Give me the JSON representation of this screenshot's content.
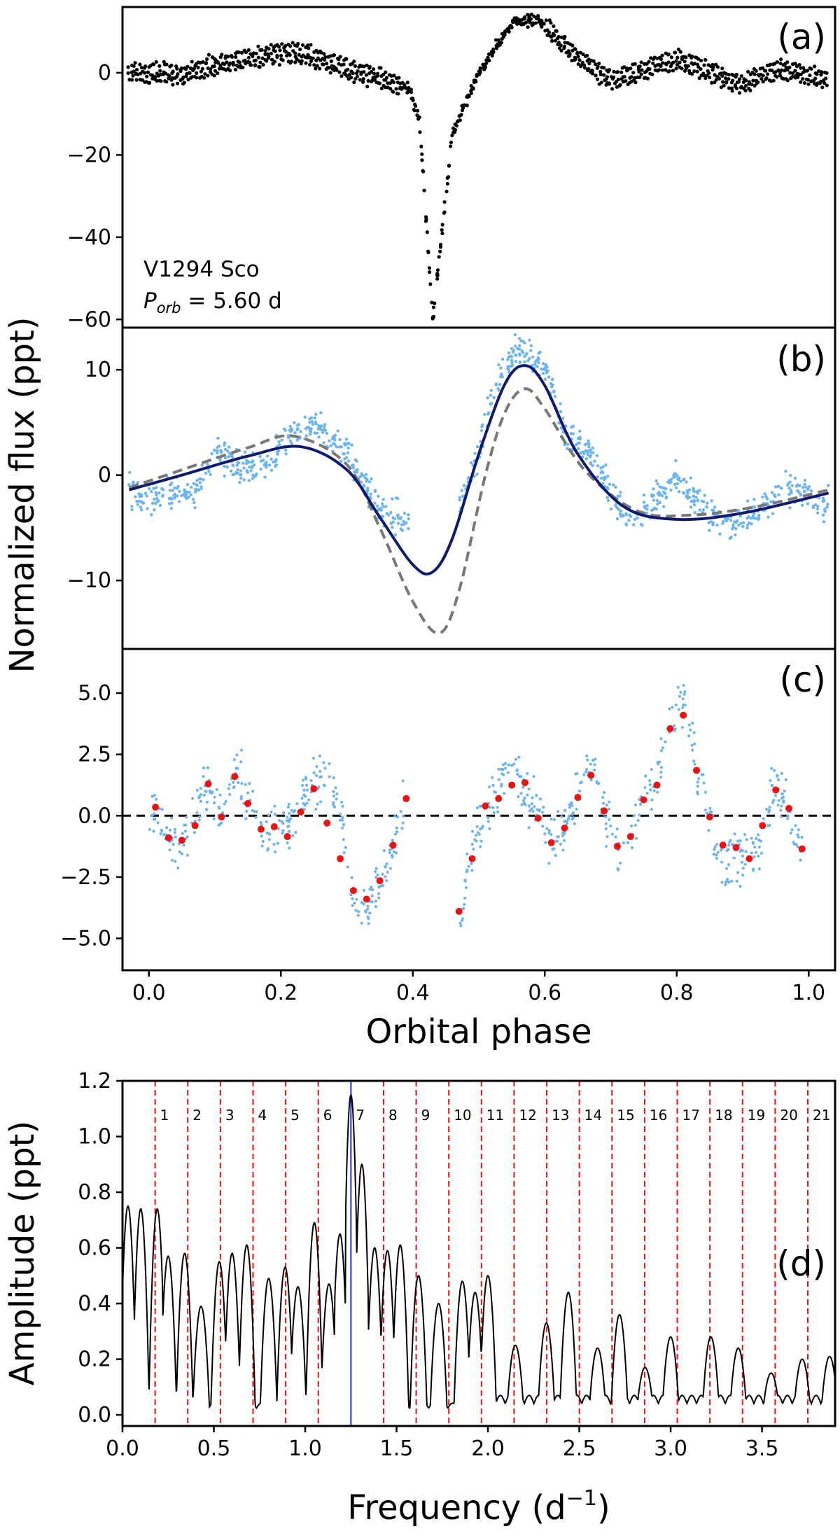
{
  "figure": {
    "ylabel_main": "Normalized flux (ppt)",
    "xlabel_phase": "Orbital phase",
    "ylabel_d": "Amplitude (ppt)",
    "xlabel_d_main": "Frequency (d",
    "xlabel_d_sup": "−1",
    "xlabel_d_close": ")"
  },
  "colors": {
    "data": "#000000",
    "residual_points": "#6cb4f0",
    "binned_points": "#ee1111",
    "model_solid": "#0d1a70",
    "model_dashed": "#777777",
    "harmonic_lines": "#ee1111",
    "peak_line": "#1f2ed6"
  },
  "chart_data": [
    {
      "panel": "a",
      "type": "scatter",
      "panel_label": "(a)",
      "star_name": "V1294 Sco",
      "period_symbol": "P",
      "period_subscript": "orb",
      "period_value": " = 5.60 d",
      "xlim": [
        -0.04,
        1.04
      ],
      "ylim": [
        -62,
        16
      ],
      "yticks": [
        0,
        -20,
        -40,
        -60
      ],
      "ytick_labels": [
        "0",
        "−20",
        "−40",
        "−60"
      ],
      "profile": [
        [
          -0.03,
          0
        ],
        [
          0.05,
          -0.5
        ],
        [
          0.12,
          2.5
        ],
        [
          0.22,
          5
        ],
        [
          0.3,
          1
        ],
        [
          0.36,
          -2
        ],
        [
          0.395,
          -4
        ],
        [
          0.41,
          -12
        ],
        [
          0.42,
          -35
        ],
        [
          0.43,
          -60
        ],
        [
          0.44,
          -45
        ],
        [
          0.46,
          -15
        ],
        [
          0.5,
          0
        ],
        [
          0.55,
          12
        ],
        [
          0.59,
          13
        ],
        [
          0.64,
          5
        ],
        [
          0.7,
          -2
        ],
        [
          0.8,
          3
        ],
        [
          0.9,
          -3
        ],
        [
          0.95,
          1
        ],
        [
          1.03,
          -2
        ]
      ]
    },
    {
      "panel": "b",
      "type": "line",
      "panel_label": "(b)",
      "xlim": [
        -0.04,
        1.04
      ],
      "ylim": [
        -16.5,
        14
      ],
      "yticks": [
        10,
        0,
        -10
      ],
      "ytick_labels": [
        "10",
        "0",
        "−10"
      ],
      "series": [
        {
          "name": "model fit (solid)",
          "points": [
            [
              -0.03,
              -1.4
            ],
            [
              0.05,
              0
            ],
            [
              0.15,
              1.8
            ],
            [
              0.23,
              2.7
            ],
            [
              0.3,
              0.5
            ],
            [
              0.35,
              -4
            ],
            [
              0.4,
              -8.5
            ],
            [
              0.43,
              -9.2
            ],
            [
              0.46,
              -6
            ],
            [
              0.5,
              2
            ],
            [
              0.54,
              8.7
            ],
            [
              0.57,
              10.4
            ],
            [
              0.6,
              8.5
            ],
            [
              0.65,
              2
            ],
            [
              0.72,
              -3
            ],
            [
              0.8,
              -4.2
            ],
            [
              0.9,
              -3.6
            ],
            [
              1.03,
              -1.7
            ]
          ]
        },
        {
          "name": "model (dashed)",
          "points": [
            [
              -0.03,
              -1.2
            ],
            [
              0.05,
              0.5
            ],
            [
              0.15,
              2.6
            ],
            [
              0.22,
              3.7
            ],
            [
              0.3,
              1
            ],
            [
              0.35,
              -5
            ],
            [
              0.4,
              -12
            ],
            [
              0.44,
              -15
            ],
            [
              0.47,
              -11
            ],
            [
              0.51,
              0
            ],
            [
              0.54,
              6
            ],
            [
              0.57,
              8.2
            ],
            [
              0.6,
              6.3
            ],
            [
              0.66,
              0.5
            ],
            [
              0.74,
              -3.4
            ],
            [
              0.82,
              -3.8
            ],
            [
              0.92,
              -3
            ],
            [
              1.03,
              -1.4
            ]
          ]
        }
      ],
      "scatter_profile": [
        [
          -0.03,
          -1.5
        ],
        [
          0.0,
          -2.5
        ],
        [
          0.07,
          -1.5
        ],
        [
          0.1,
          2
        ],
        [
          0.13,
          1
        ],
        [
          0.17,
          0.5
        ],
        [
          0.22,
          4
        ],
        [
          0.25,
          5
        ],
        [
          0.3,
          2
        ],
        [
          0.35,
          -3
        ],
        [
          0.39,
          -4.5
        ],
        [
          0.47,
          -3
        ],
        [
          0.5,
          2
        ],
        [
          0.52,
          8
        ],
        [
          0.56,
          12
        ],
        [
          0.6,
          10
        ],
        [
          0.63,
          4
        ],
        [
          0.67,
          2
        ],
        [
          0.71,
          -3
        ],
        [
          0.74,
          -4
        ],
        [
          0.8,
          0
        ],
        [
          0.82,
          -2
        ],
        [
          0.85,
          -3.5
        ],
        [
          0.89,
          -5
        ],
        [
          0.93,
          -3
        ],
        [
          0.97,
          -1
        ],
        [
          1.03,
          -3
        ]
      ]
    },
    {
      "panel": "c",
      "type": "scatter",
      "panel_label": "(c)",
      "xlim": [
        -0.04,
        1.04
      ],
      "ylim": [
        -6.3,
        6.8
      ],
      "yticks": [
        5.0,
        2.5,
        0.0,
        -2.5,
        -5.0
      ],
      "ytick_labels": [
        "5.0",
        "2.5",
        "0.0",
        "−2.5",
        "−5.0"
      ],
      "xticks": [
        0.0,
        0.2,
        0.4,
        0.6,
        0.8,
        1.0
      ],
      "xtick_labels": [
        "0.0",
        "0.2",
        "0.4",
        "0.6",
        "0.8",
        "1.0"
      ],
      "binned": {
        "x": [
          0.01,
          0.03,
          0.05,
          0.07,
          0.09,
          0.11,
          0.13,
          0.15,
          0.17,
          0.19,
          0.21,
          0.23,
          0.25,
          0.27,
          0.29,
          0.31,
          0.33,
          0.35,
          0.37,
          0.39,
          0.47,
          0.49,
          0.51,
          0.53,
          0.55,
          0.57,
          0.59,
          0.61,
          0.63,
          0.65,
          0.67,
          0.69,
          0.71,
          0.73,
          0.75,
          0.77,
          0.79,
          0.81,
          0.83,
          0.85,
          0.87,
          0.89,
          0.91,
          0.93,
          0.95,
          0.97,
          0.99
        ],
        "y": [
          0.35,
          -0.9,
          -1.0,
          -0.4,
          1.3,
          -0.05,
          1.6,
          0.5,
          -0.55,
          -0.45,
          -0.85,
          0.15,
          1.1,
          -0.3,
          -1.75,
          -3.05,
          -3.4,
          -2.65,
          -1.2,
          0.7,
          -3.9,
          -1.75,
          0.4,
          0.7,
          1.25,
          1.35,
          -0.1,
          -1.1,
          -0.5,
          0.75,
          1.65,
          0.2,
          -1.25,
          -0.85,
          0.65,
          1.25,
          3.55,
          4.1,
          1.85,
          -0.05,
          -1.2,
          -1.3,
          -1.75,
          -0.4,
          1.05,
          0.3,
          -1.35
        ]
      },
      "scatter_profile": [
        [
          0.0,
          0.3
        ],
        [
          0.03,
          -1.0
        ],
        [
          0.05,
          -1.2
        ],
        [
          0.09,
          1.3
        ],
        [
          0.11,
          0.0
        ],
        [
          0.13,
          2.0
        ],
        [
          0.17,
          -0.6
        ],
        [
          0.2,
          -0.7
        ],
        [
          0.23,
          0.5
        ],
        [
          0.25,
          1.5
        ],
        [
          0.27,
          1.5
        ],
        [
          0.29,
          0.5
        ],
        [
          0.31,
          -3.5
        ],
        [
          0.33,
          -3.8
        ],
        [
          0.35,
          -2.6
        ],
        [
          0.37,
          -1.2
        ],
        [
          0.39,
          0.8
        ]
      ],
      "scatter_profile_2": [
        [
          0.47,
          -4.0
        ],
        [
          0.49,
          -1.5
        ],
        [
          0.51,
          0.5
        ],
        [
          0.55,
          1.8
        ],
        [
          0.59,
          0.0
        ],
        [
          0.61,
          -1.3
        ],
        [
          0.63,
          -0.5
        ],
        [
          0.65,
          0.8
        ],
        [
          0.67,
          2.5
        ],
        [
          0.69,
          0.0
        ],
        [
          0.71,
          -1.5
        ],
        [
          0.73,
          -0.5
        ],
        [
          0.75,
          0.7
        ],
        [
          0.77,
          1.5
        ],
        [
          0.79,
          3.8
        ],
        [
          0.81,
          4.8
        ],
        [
          0.83,
          2.0
        ],
        [
          0.85,
          0.0
        ],
        [
          0.87,
          -2.0
        ],
        [
          0.89,
          -1.5
        ],
        [
          0.91,
          -1.8
        ],
        [
          0.93,
          -0.5
        ],
        [
          0.95,
          1.2
        ],
        [
          0.97,
          0.3
        ],
        [
          0.99,
          -1.5
        ]
      ]
    },
    {
      "panel": "d",
      "type": "line",
      "panel_label": "(d)",
      "xlim": [
        0.0,
        3.9
      ],
      "ylim": [
        -0.04,
        1.2
      ],
      "xticks": [
        0.0,
        0.5,
        1.0,
        1.5,
        2.0,
        2.5,
        3.0,
        3.5
      ],
      "xtick_labels": [
        "0.0",
        "0.5",
        "1.0",
        "1.5",
        "2.0",
        "2.5",
        "3.0",
        "3.5"
      ],
      "yticks": [
        0.0,
        0.2,
        0.4,
        0.6,
        0.8,
        1.0,
        1.2
      ],
      "ytick_labels": [
        "0.0",
        "0.2",
        "0.4",
        "0.6",
        "0.8",
        "1.0",
        "1.2"
      ],
      "orbital_frequency": 0.1786,
      "harmonics": [
        "1",
        "2",
        "3",
        "4",
        "5",
        "6",
        "7",
        "8",
        "9",
        "10",
        "11",
        "12",
        "13",
        "14",
        "15",
        "16",
        "17",
        "18",
        "19",
        "20",
        "21"
      ],
      "highlighted_harmonic": 7,
      "peaks": {
        "x": [
          0.03,
          0.1,
          0.19,
          0.25,
          0.34,
          0.43,
          0.53,
          0.6,
          0.68,
          0.8,
          0.89,
          0.96,
          1.05,
          1.13,
          1.19,
          1.25,
          1.31,
          1.38,
          1.45,
          1.52,
          1.62,
          1.73,
          1.86,
          1.93,
          2.0,
          2.15,
          2.32,
          2.44,
          2.6,
          2.72,
          2.86,
          3.0,
          3.22,
          3.37,
          3.55,
          3.72,
          3.87
        ],
        "y": [
          0.75,
          0.74,
          0.74,
          0.57,
          0.58,
          0.39,
          0.55,
          0.58,
          0.61,
          0.49,
          0.53,
          0.46,
          0.69,
          0.47,
          0.65,
          1.15,
          0.9,
          0.6,
          0.59,
          0.61,
          0.5,
          0.4,
          0.48,
          0.44,
          0.5,
          0.25,
          0.33,
          0.44,
          0.24,
          0.36,
          0.17,
          0.28,
          0.28,
          0.24,
          0.15,
          0.2,
          0.21
        ]
      }
    }
  ]
}
